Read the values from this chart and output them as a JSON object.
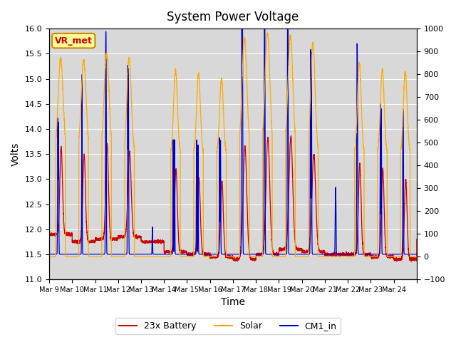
{
  "title": "System Power Voltage",
  "xlabel": "Time",
  "ylabel_left": "Volts",
  "ylim_left": [
    11.0,
    16.0
  ],
  "ylim_right": [
    -100,
    1000
  ],
  "yticks_left": [
    11.0,
    11.5,
    12.0,
    12.5,
    13.0,
    13.5,
    14.0,
    14.5,
    15.0,
    15.5,
    16.0
  ],
  "yticks_right": [
    -100,
    0,
    100,
    200,
    300,
    400,
    500,
    600,
    700,
    800,
    900,
    1000
  ],
  "xtick_positions": [
    0,
    1,
    2,
    3,
    4,
    5,
    6,
    7,
    8,
    9,
    10,
    11,
    12,
    13,
    14,
    15,
    16
  ],
  "xtick_labels": [
    "Mar 9",
    "Mar 10",
    "Mar 11",
    "Mar 12",
    "Mar 13",
    "Mar 14",
    "Mar 15",
    "Mar 16",
    "Mar 17",
    "Mar 18",
    "Mar 19",
    "Mar 20",
    "Mar 21",
    "Mar 22",
    "Mar 23",
    "Mar 24",
    ""
  ],
  "color_battery": "#cc0000",
  "color_solar": "#ffaa00",
  "color_cm1": "#0000cc",
  "plot_bg_color": "#d8d8d8",
  "legend_labels": [
    "23x Battery",
    "Solar",
    "CM1_in"
  ],
  "annotation_text": "VR_met",
  "annotation_color": "#cc0000",
  "annotation_bg": "#ffff99",
  "annotation_border": "#cc8800",
  "n_days": 16
}
